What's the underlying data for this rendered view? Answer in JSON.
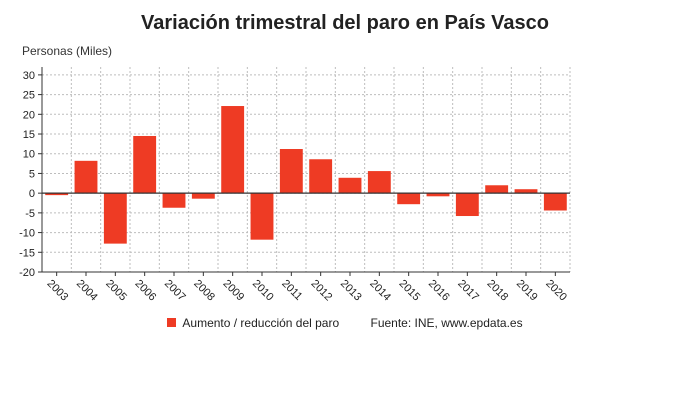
{
  "colors": {
    "bar": "#ee3b24",
    "axis": "#333333",
    "grid": "#bdbdbd",
    "text": "#222222"
  },
  "chart_data": {
    "type": "bar",
    "title": "Variación trimestral del paro en País Vasco",
    "xlabel": "",
    "ylabel": "Personas (Miles)",
    "ylim": [
      -20,
      32
    ],
    "yticks": [
      -20,
      -15,
      -10,
      -5,
      0,
      5,
      10,
      15,
      20,
      25,
      30
    ],
    "categories": [
      "2003",
      "2004",
      "2005",
      "2006",
      "2007",
      "2008",
      "2009",
      "2010",
      "2011",
      "2012",
      "2013",
      "2014",
      "2015",
      "2016",
      "2017",
      "2018",
      "2019",
      "2020"
    ],
    "series": [
      {
        "name": "Aumento / reducción del paro",
        "values": [
          -0.5,
          8.2,
          -12.8,
          14.5,
          -3.7,
          -1.4,
          22.1,
          -11.8,
          11.2,
          8.6,
          3.9,
          5.6,
          -2.8,
          -0.8,
          -5.8,
          2.0,
          1.0,
          -4.4
        ]
      }
    ],
    "grid": true,
    "legend_position": "bottom"
  },
  "legend": {
    "series_label": "Aumento / reducción del paro",
    "source": "Fuente: INE, www.epdata.es"
  }
}
